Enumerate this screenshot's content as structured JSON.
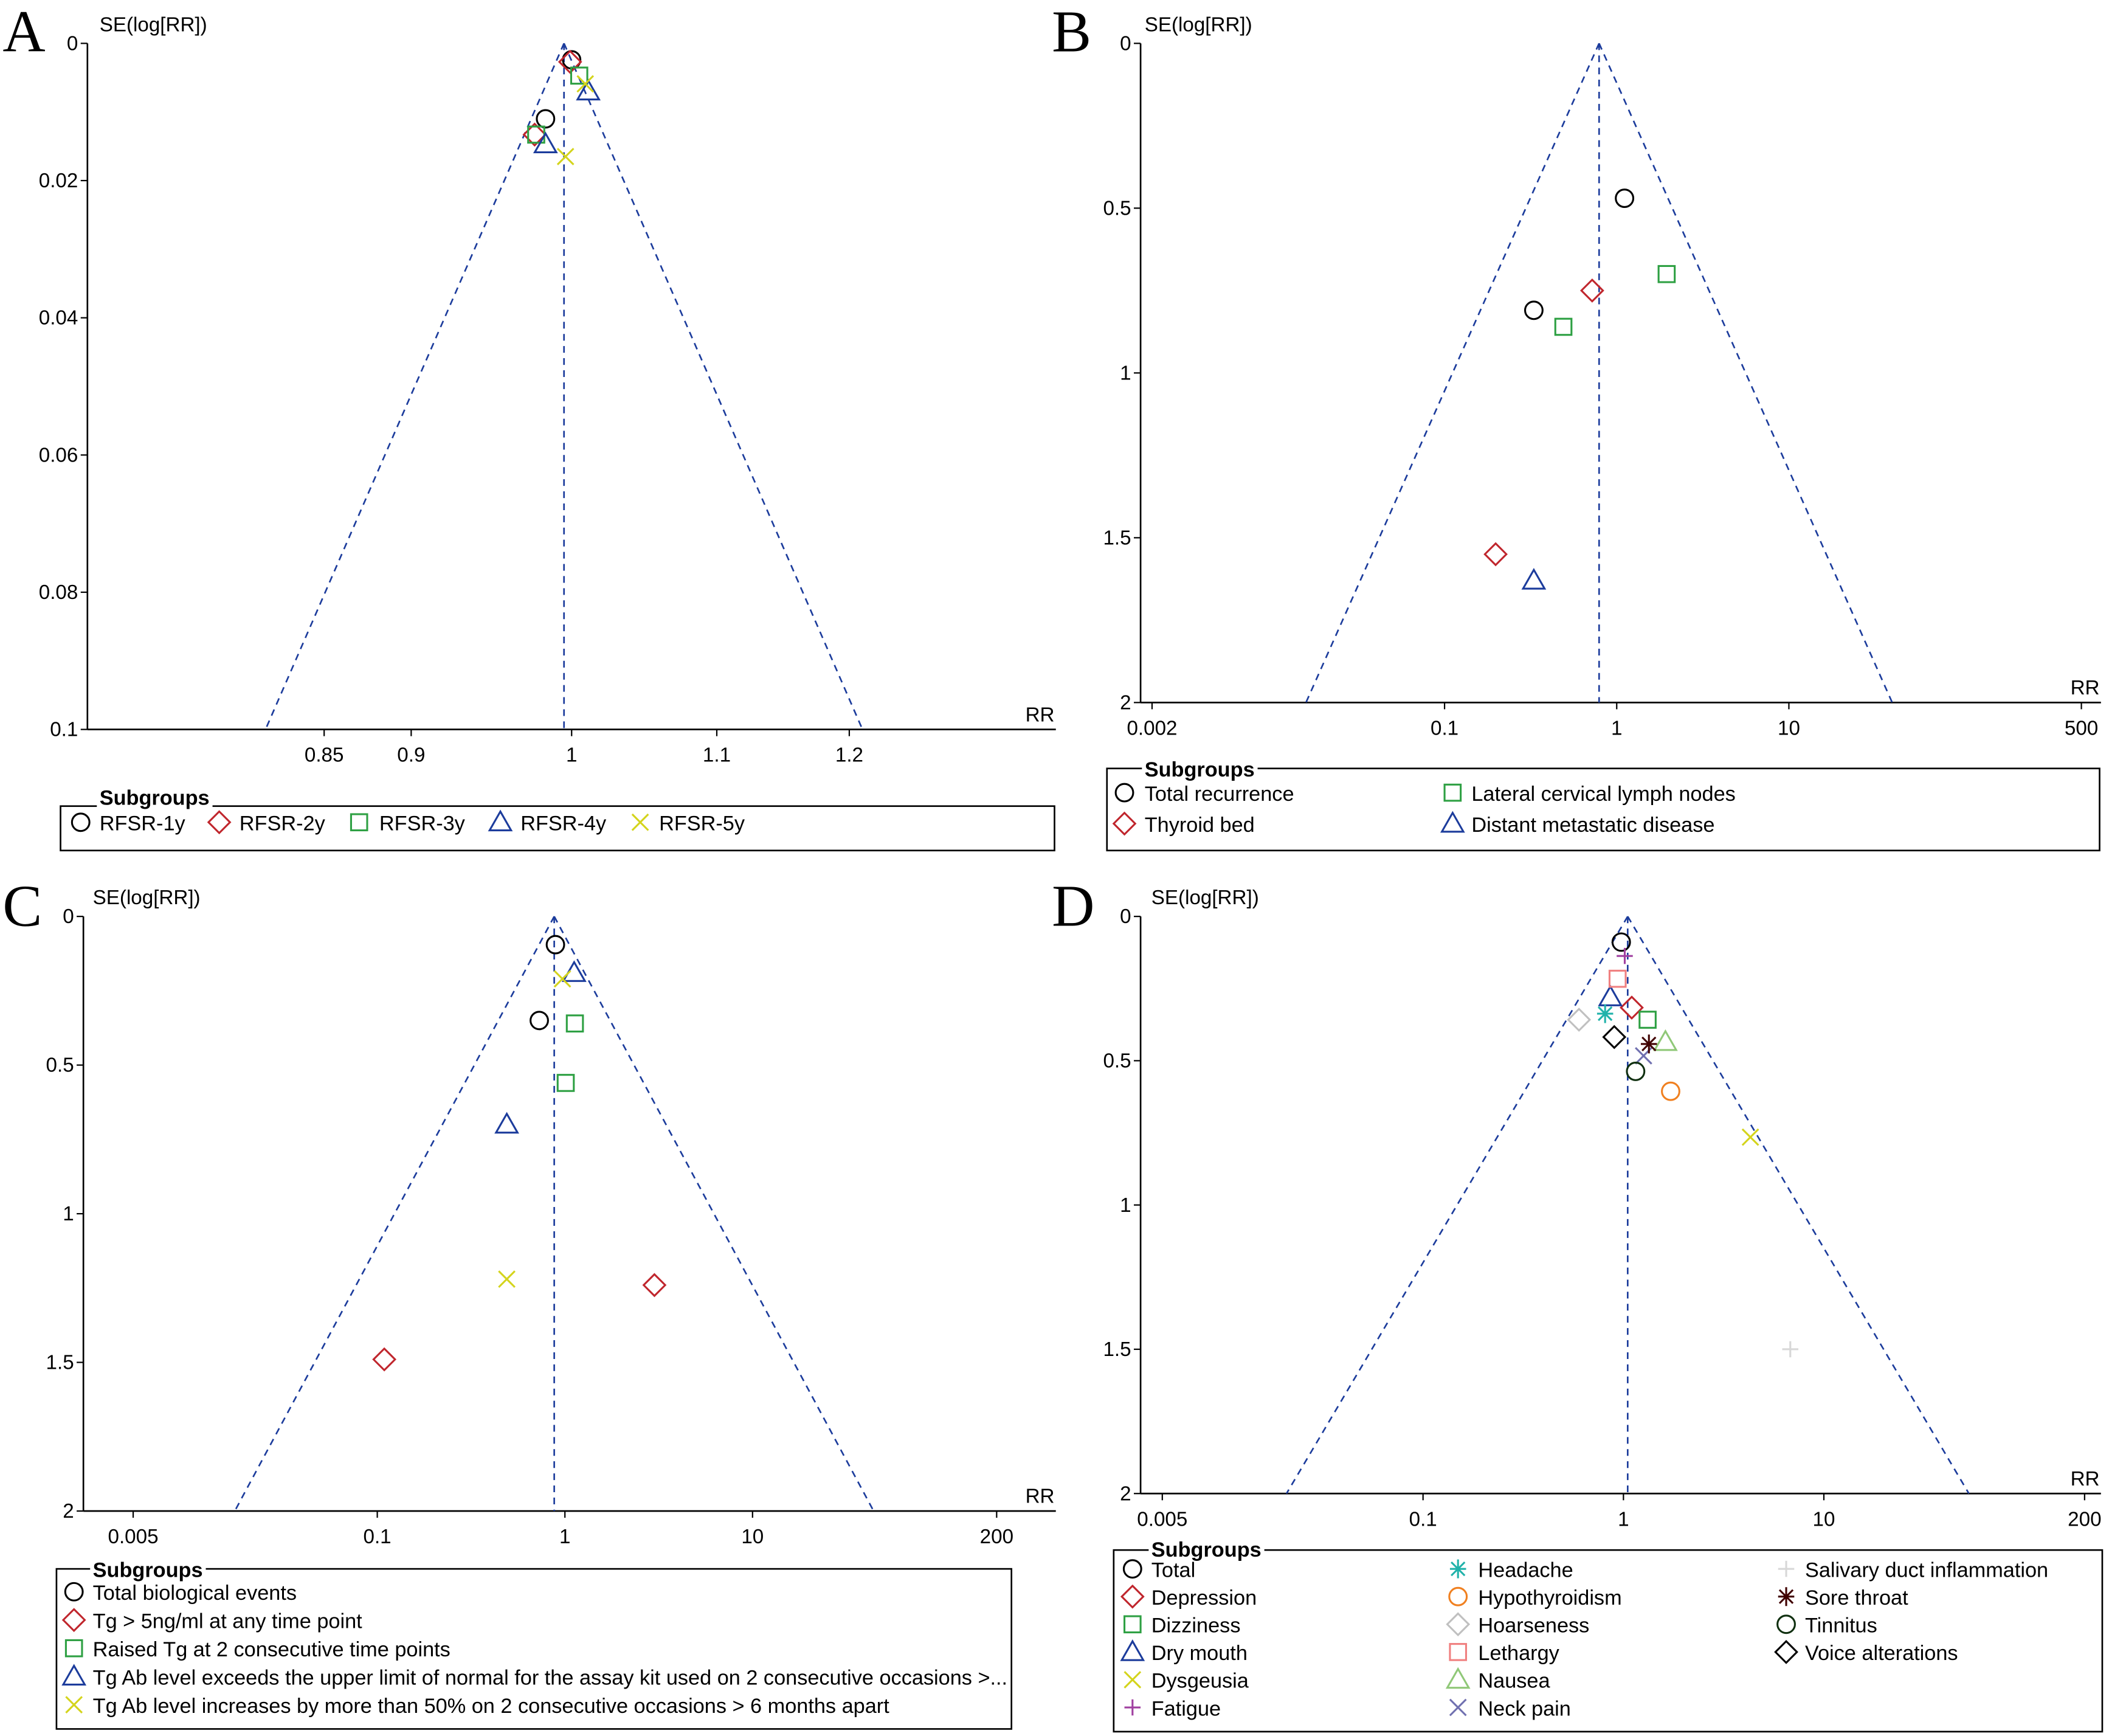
{
  "chart_data": [
    {
      "panel": "A",
      "type": "scatter",
      "subtype": "funnel",
      "ylabel": "SE(log[RR])",
      "xlabel": "RR",
      "xscale": "log",
      "yticks": [
        "0",
        "0.02",
        "0.04",
        "0.06",
        "0.08",
        "0.1"
      ],
      "ytick_values": [
        0,
        0.02,
        0.04,
        0.06,
        0.08,
        0.1
      ],
      "xticks": [
        "0.85",
        "0.9",
        "1",
        "1.1",
        "1.2"
      ],
      "xtick_values": [
        0.85,
        0.9,
        1,
        1.1,
        1.2
      ],
      "ylim": [
        0,
        0.1
      ],
      "pooled_rr": 0.995,
      "legend_title": "Subgroups",
      "series": [
        {
          "name": "RFSR-1y",
          "marker": "circle",
          "color": "#000000",
          "points": [
            [
              1.0,
              0.0024
            ],
            [
              0.983,
              0.011
            ]
          ]
        },
        {
          "name": "RFSR-2y",
          "marker": "diamond",
          "color": "#c0262d",
          "points": [
            [
              0.999,
              0.0027
            ],
            [
              0.976,
              0.0133
            ]
          ]
        },
        {
          "name": "RFSR-3y",
          "marker": "square",
          "color": "#2ea043",
          "points": [
            [
              1.005,
              0.0047
            ],
            [
              0.977,
              0.0133
            ]
          ]
        },
        {
          "name": "RFSR-4y",
          "marker": "triangle",
          "color": "#1c3c9c",
          "points": [
            [
              1.011,
              0.007
            ],
            [
              0.983,
              0.0147
            ]
          ]
        },
        {
          "name": "RFSR-5y",
          "marker": "x",
          "color": "#d4d41c",
          "points": [
            [
              1.009,
              0.0059
            ],
            [
              0.996,
              0.0165
            ]
          ]
        }
      ]
    },
    {
      "panel": "B",
      "type": "scatter",
      "subtype": "funnel",
      "ylabel": "SE(log[RR])",
      "xlabel": "RR",
      "xscale": "log",
      "yticks": [
        "0",
        "0.5",
        "1",
        "1.5",
        "2"
      ],
      "ytick_values": [
        0,
        0.5,
        1,
        1.5,
        2
      ],
      "xticks": [
        "0.002",
        "0.1",
        "1",
        "10",
        "500"
      ],
      "xtick_values": [
        0.002,
        0.1,
        1,
        10,
        500
      ],
      "ylim": [
        0,
        2
      ],
      "pooled_rr": 0.79,
      "legend_title": "Subgroups",
      "series": [
        {
          "name": "Total recurrence",
          "marker": "circle",
          "color": "#000000",
          "points": [
            [
              1.11,
              0.47
            ],
            [
              0.33,
              0.81
            ]
          ]
        },
        {
          "name": "Thyroid bed",
          "marker": "diamond",
          "color": "#c0262d",
          "points": [
            [
              0.72,
              0.75
            ],
            [
              0.198,
              1.55
            ]
          ]
        },
        {
          "name": "Lateral cervical lymph nodes",
          "marker": "square",
          "color": "#2ea043",
          "points": [
            [
              1.95,
              0.7
            ],
            [
              0.49,
              0.86
            ]
          ]
        },
        {
          "name": "Distant metastatic disease",
          "marker": "triangle",
          "color": "#1c3c9c",
          "points": [
            [
              0.33,
              1.63
            ]
          ]
        }
      ]
    },
    {
      "panel": "C",
      "type": "scatter",
      "subtype": "funnel",
      "ylabel": "SE(log[RR])",
      "xlabel": "RR",
      "xscale": "log",
      "yticks": [
        "0",
        "0.5",
        "1",
        "1.5",
        "2"
      ],
      "ytick_values": [
        0,
        0.5,
        1,
        1.5,
        2
      ],
      "xticks": [
        "0.005",
        "0.1",
        "1",
        "10",
        "200"
      ],
      "xtick_values": [
        0.005,
        0.1,
        1,
        10,
        200
      ],
      "ylim": [
        0,
        2
      ],
      "pooled_rr": 0.877,
      "legend_title": "Subgroups",
      "series": [
        {
          "name": "Total biological events",
          "marker": "circle",
          "color": "#000000",
          "points": [
            [
              0.89,
              0.095
            ],
            [
              0.73,
              0.35
            ]
          ]
        },
        {
          "name": "Tg > 5ng/ml at any time point",
          "marker": "diamond",
          "color": "#c0262d",
          "points": [
            [
              3.0,
              1.24
            ],
            [
              0.109,
              1.49
            ]
          ]
        },
        {
          "name": "Raised Tg at 2 consecutive time points",
          "marker": "square",
          "color": "#2ea043",
          "points": [
            [
              1.13,
              0.36
            ],
            [
              1.01,
              0.56
            ]
          ]
        },
        {
          "name": "Tg Ab level exceeds the upper limit of normal for the assay kit used on 2 consecutive occasions >...",
          "marker": "triangle",
          "color": "#1c3c9c",
          "points": [
            [
              1.12,
              0.19
            ],
            [
              0.49,
              0.7
            ]
          ]
        },
        {
          "name": "Tg Ab level increases by more than 50% on 2 consecutive occasions > 6 months apart",
          "marker": "x",
          "color": "#d4d41c",
          "points": [
            [
              0.97,
              0.21
            ],
            [
              0.49,
              1.22
            ]
          ]
        }
      ]
    },
    {
      "panel": "D",
      "type": "scatter",
      "subtype": "funnel",
      "ylabel": "SE(log[RR])",
      "xlabel": "RR",
      "xscale": "log",
      "yticks": [
        "0",
        "0.5",
        "1",
        "1.5",
        "2"
      ],
      "ytick_values": [
        0,
        0.5,
        1,
        1.5,
        2
      ],
      "xticks": [
        "0.005",
        "0.1",
        "1",
        "10",
        "200"
      ],
      "xtick_values": [
        0.005,
        0.1,
        1,
        10,
        200
      ],
      "ylim": [
        0,
        2
      ],
      "pooled_rr": 1.05,
      "legend_title": "Subgroups",
      "series": [
        {
          "name": "Total",
          "marker": "circle",
          "color": "#000000",
          "points": [
            [
              0.975,
              0.089
            ]
          ]
        },
        {
          "name": "Depression",
          "marker": "diamond",
          "color": "#c0262d",
          "points": [
            [
              1.1,
              0.316
            ]
          ]
        },
        {
          "name": "Dizziness",
          "marker": "square",
          "color": "#2ea043",
          "points": [
            [
              1.32,
              0.358
            ]
          ]
        },
        {
          "name": "Dry mouth",
          "marker": "triangle",
          "color": "#1c3c9c",
          "points": [
            [
              0.86,
              0.28
            ]
          ]
        },
        {
          "name": "Dysgeusia",
          "marker": "x",
          "color": "#d4d41c",
          "points": [
            [
              4.3,
              0.765
            ]
          ]
        },
        {
          "name": "Fatigue",
          "marker": "plus",
          "color": "#a040a0",
          "points": [
            [
              1.015,
              0.137
            ]
          ]
        },
        {
          "name": "Headache",
          "marker": "asterisk",
          "color": "#20b2aa",
          "points": [
            [
              0.81,
              0.337
            ]
          ]
        },
        {
          "name": "Hypothyroidism",
          "marker": "circle",
          "color": "#f08020",
          "points": [
            [
              1.72,
              0.606
            ]
          ]
        },
        {
          "name": "Hoarseness",
          "marker": "diamond",
          "color": "#c0c0c0",
          "points": [
            [
              0.6,
              0.358
            ]
          ]
        },
        {
          "name": "Lethargy",
          "marker": "square",
          "color": "#f08080",
          "points": [
            [
              0.935,
              0.216
            ]
          ]
        },
        {
          "name": "Nausea",
          "marker": "triangle",
          "color": "#90c878",
          "points": [
            [
              1.62,
              0.435
            ]
          ]
        },
        {
          "name": "Neck pain",
          "marker": "x",
          "color": "#7070b0",
          "points": [
            [
              1.26,
              0.483
            ]
          ]
        },
        {
          "name": "Salivary duct inflammation",
          "marker": "plus",
          "color": "#d8d8d8",
          "points": [
            [
              6.8,
              1.5
            ]
          ]
        },
        {
          "name": "Sore throat",
          "marker": "asterisk",
          "color": "#400000",
          "points": [
            [
              1.34,
              0.442
            ]
          ]
        },
        {
          "name": "Tinnitus",
          "marker": "circle",
          "color": "#103010",
          "points": [
            [
              1.15,
              0.537
            ]
          ]
        },
        {
          "name": "Voice alterations",
          "marker": "diamond",
          "color": "#000000",
          "points": [
            [
              0.9,
              0.418
            ]
          ]
        }
      ]
    }
  ],
  "funnel_color": "#1c3c9c"
}
